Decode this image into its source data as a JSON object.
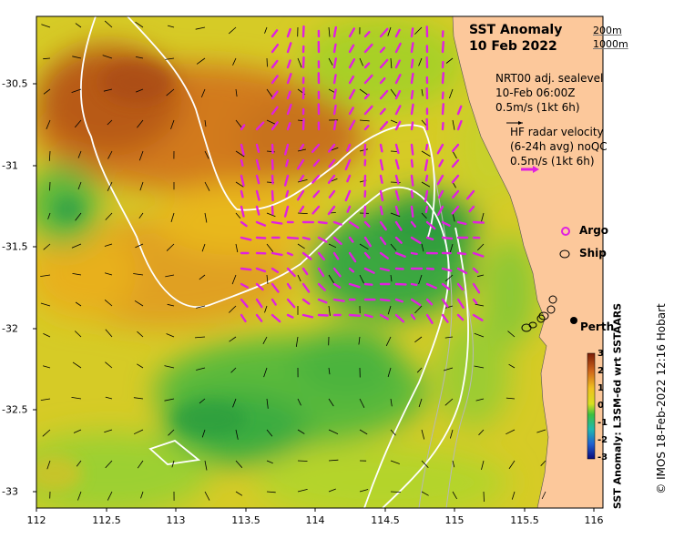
{
  "map": {
    "title_line1": "SST Anomaly",
    "title_line2": "10 Feb 2022",
    "depth_contours": [
      "200m",
      "1000m"
    ],
    "model_legend": [
      "NRT00 adj. sealevel",
      "10-Feb 06:00Z",
      "0.5m/s (1kt 6h)"
    ],
    "radar_legend": [
      "HF radar velocity",
      "(6-24h avg) noQC",
      "0.5m/s (1kt 6h)"
    ],
    "argo_label": "Argo",
    "ship_label": "Ship",
    "city_label": "Perth",
    "credit": "© IMOS 18-Feb-2022 12:16 Hobart",
    "colorbar_title": "SST Anomaly: L3SM-6d wrt SSTAARS",
    "colorbar_ticks": [
      "3",
      "2",
      "1",
      "0",
      "-1",
      "-2",
      "-3"
    ],
    "x_ticks": [
      "112",
      "112.5",
      "113",
      "113.5",
      "114",
      "114.5",
      "115",
      "115.5",
      "116"
    ],
    "y_ticks": [
      "-30.5",
      "-31",
      "-31.5",
      "-32",
      "-32.5",
      "-33"
    ],
    "colors": {
      "land": "#fcc89b",
      "radar_arrow": "#e020e0",
      "model_arrow": "#000000",
      "contour": "#ffffff"
    }
  }
}
